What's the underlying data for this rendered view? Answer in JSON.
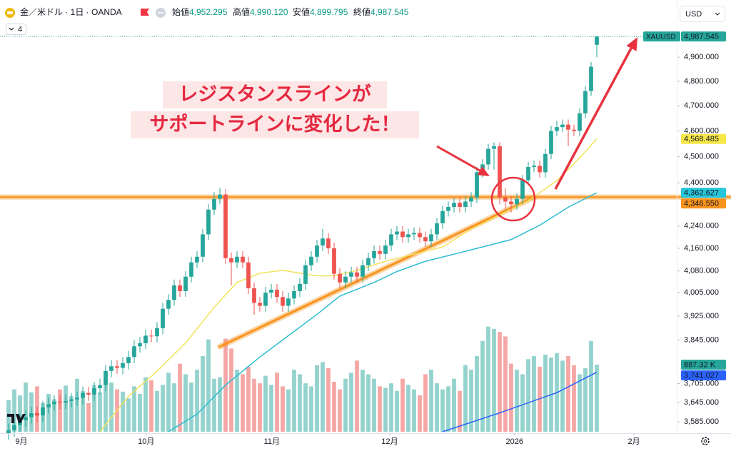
{
  "chart_data": {
    "type": "candlestick",
    "header": {
      "symbol": "金／米ドル · 1日 · OANDA",
      "open_label": "始値",
      "open": "4,952.295",
      "high_label": "高値",
      "high": "4,990.120",
      "low_label": "安値",
      "low": "4,899.795",
      "close_label": "終値",
      "close": "4,987.545"
    },
    "indicator_count": 4,
    "currency": "USD",
    "ticker": "XAUUSD",
    "log_scale": true,
    "xlim": [
      -1.5,
      117
    ],
    "xticks": [
      {
        "value": 2.25,
        "label": "9月"
      },
      {
        "value": 24.1,
        "label": "10月"
      },
      {
        "value": 46.1,
        "label": "11月"
      },
      {
        "value": 66.75,
        "label": "12月"
      },
      {
        "value": 88.6,
        "label": "2026"
      },
      {
        "value": 109.5,
        "label": "2月"
      }
    ],
    "ylim": [
      3555,
      4985
    ],
    "yticks": [
      {
        "value": 3585,
        "label": "3,585.000"
      },
      {
        "value": 3645,
        "label": "3,645.000"
      },
      {
        "value": 3705,
        "label": "3,705.000"
      },
      {
        "value": 3845,
        "label": "3,845.000"
      },
      {
        "value": 3925,
        "label": "3,925.000"
      },
      {
        "value": 4005,
        "label": "4,005.000"
      },
      {
        "value": 4080,
        "label": "4,080.000"
      },
      {
        "value": 4160,
        "label": "4,160.000"
      },
      {
        "value": 4240,
        "label": "4,240.000"
      },
      {
        "value": 4400,
        "label": "4,400.000"
      },
      {
        "value": 4500,
        "label": "4,500.000"
      },
      {
        "value": 4600,
        "label": "4,600.000"
      },
      {
        "value": 4700,
        "label": "4,700.000"
      },
      {
        "value": 4800,
        "label": "4,800.000"
      },
      {
        "value": 4900,
        "label": "4,900.000"
      }
    ],
    "ohlc": {
      "up_color": "#26a69a",
      "down_color": "#ef5350",
      "last_label": "4,987.545",
      "open": [
        3550,
        3560,
        3575,
        3590,
        3600,
        3612,
        3605,
        3630,
        3640,
        3648,
        3645,
        3650,
        3655,
        3660,
        3675,
        3670,
        3690,
        3700,
        3745,
        3760,
        3755,
        3770,
        3790,
        3825,
        3835,
        3860,
        3858,
        3885,
        3950,
        3980,
        4030,
        4010,
        4060,
        4110,
        4130,
        4210,
        4300,
        4340,
        4356,
        4125,
        4110,
        4130,
        4110,
        4020,
        3970,
        3960,
        4005,
        4015,
        3990,
        3960,
        3985,
        4010,
        4035,
        4100,
        4130,
        4170,
        4195,
        4160,
        4070,
        4040,
        4060,
        4075,
        4060,
        4100,
        4125,
        4150,
        4140,
        4170,
        4210,
        4220,
        4200,
        4210,
        4215,
        4200,
        4185,
        4210,
        4250,
        4295,
        4310,
        4325,
        4310,
        4330,
        4345,
        4440,
        4470,
        4530,
        4540,
        4345,
        4330,
        4320,
        4340,
        4410,
        4460,
        4465,
        4440,
        4510,
        4600,
        4615,
        4625,
        4605,
        4600,
        4670,
        4760,
        4952.295
      ],
      "high": [
        3580,
        3595,
        3610,
        3620,
        3632,
        3632,
        3650,
        3660,
        3668,
        3668,
        3670,
        3675,
        3680,
        3695,
        3695,
        3710,
        3720,
        3765,
        3780,
        3780,
        3790,
        3810,
        3845,
        3855,
        3880,
        3880,
        3905,
        3970,
        4000,
        4050,
        4050,
        4080,
        4130,
        4150,
        4230,
        4320,
        4365,
        4381,
        4376,
        4145,
        4150,
        4150,
        4130,
        4040,
        3990,
        4025,
        4035,
        4035,
        4010,
        4005,
        4030,
        4055,
        4120,
        4150,
        4190,
        4230,
        4215,
        4180,
        4090,
        4080,
        4095,
        4095,
        4120,
        4145,
        4170,
        4170,
        4190,
        4230,
        4240,
        4240,
        4230,
        4235,
        4235,
        4220,
        4230,
        4270,
        4315,
        4330,
        4345,
        4345,
        4350,
        4365,
        4460,
        4490,
        4550,
        4555,
        4555,
        4380,
        4350,
        4360,
        4430,
        4480,
        4485,
        4485,
        4530,
        4620,
        4640,
        4645,
        4645,
        4625,
        4690,
        4780,
        4880,
        4990.12
      ],
      "low": [
        3530,
        3540,
        3555,
        3570,
        3580,
        3585,
        3585,
        3610,
        3620,
        3625,
        3625,
        3630,
        3635,
        3640,
        3650,
        3650,
        3670,
        3680,
        3725,
        3735,
        3735,
        3750,
        3770,
        3805,
        3815,
        3838,
        3838,
        3865,
        3930,
        3960,
        3990,
        3990,
        4040,
        4090,
        4110,
        4190,
        4280,
        4320,
        4105,
        4030,
        4090,
        4090,
        4000,
        3930,
        3940,
        3940,
        3985,
        3970,
        3940,
        3940,
        3965,
        3990,
        4015,
        4080,
        4110,
        4150,
        4140,
        4050,
        4020,
        4020,
        4040,
        4040,
        4040,
        4080,
        4105,
        4120,
        4120,
        4150,
        4190,
        4180,
        4180,
        4190,
        4180,
        4165,
        4165,
        4190,
        4230,
        4275,
        4290,
        4290,
        4290,
        4310,
        4325,
        4420,
        4450,
        4450,
        4320,
        4300,
        4290,
        4300,
        4320,
        4390,
        4440,
        4420,
        4420,
        4490,
        4580,
        4595,
        4540,
        4580,
        4580,
        4650,
        4740,
        4899.795
      ],
      "close": [
        3560,
        3575,
        3590,
        3600,
        3612,
        3605,
        3630,
        3640,
        3648,
        3645,
        3650,
        3655,
        3660,
        3675,
        3670,
        3690,
        3700,
        3745,
        3760,
        3755,
        3770,
        3790,
        3825,
        3835,
        3860,
        3858,
        3885,
        3950,
        3980,
        4030,
        4010,
        4060,
        4110,
        4130,
        4210,
        4300,
        4340,
        4356,
        4125,
        4110,
        4130,
        4110,
        4020,
        3970,
        3960,
        4005,
        4015,
        3990,
        3960,
        3985,
        4010,
        4035,
        4100,
        4130,
        4170,
        4195,
        4160,
        4070,
        4040,
        4060,
        4075,
        4060,
        4100,
        4125,
        4150,
        4140,
        4170,
        4210,
        4220,
        4200,
        4210,
        4215,
        4200,
        4185,
        4210,
        4250,
        4295,
        4310,
        4325,
        4310,
        4330,
        4345,
        4440,
        4470,
        4530,
        4540,
        4345,
        4330,
        4320,
        4340,
        4410,
        4460,
        4465,
        4440,
        4510,
        4600,
        4615,
        4625,
        4605,
        4600,
        4670,
        4760,
        4860,
        4987.545
      ]
    },
    "volume": {
      "ylim": [
        0,
        1500
      ],
      "last_label": "887.32 K",
      "up_color": "#94d3cd",
      "down_color": "#f5a7a6",
      "label_color": "#26a69a",
      "values": [
        420,
        560,
        480,
        650,
        520,
        600,
        380,
        500,
        430,
        560,
        610,
        470,
        700,
        540,
        380,
        620,
        520,
        700,
        650,
        560,
        530,
        440,
        600,
        500,
        720,
        680,
        540,
        620,
        780,
        640,
        900,
        760,
        650,
        820,
        1000,
        1220,
        700,
        720,
        1230,
        1100,
        820,
        760,
        860,
        700,
        640,
        740,
        620,
        780,
        600,
        560,
        820,
        760,
        640,
        600,
        880,
        920,
        840,
        660,
        560,
        700,
        780,
        940,
        820,
        760,
        700,
        600,
        580,
        640,
        540,
        700,
        620,
        560,
        480,
        760,
        820,
        640,
        560,
        600,
        700,
        540,
        880,
        820,
        1000,
        1200,
        1390,
        1360,
        1320,
        1260,
        900,
        820,
        760,
        960,
        1000,
        860,
        1020,
        980,
        1040,
        940,
        1000,
        880,
        760,
        840,
        1200,
        887.32
      ]
    },
    "moving_averages": [
      {
        "color": "#f2e25b",
        "label_color": "#f7e84a",
        "x": [
          16,
          21,
          26,
          31,
          36,
          40,
          44,
          48,
          54,
          57,
          61,
          66,
          71,
          76,
          81,
          86,
          91,
          96,
          100,
          103
        ],
        "values": [
          3555,
          3665,
          3744,
          3836,
          3955,
          4040,
          4072,
          4082,
          4063,
          4063,
          4082,
          4114,
          4139,
          4165,
          4229,
          4281,
          4333,
          4408,
          4495,
          4568.485
        ],
        "last_label": "4,568.485"
      },
      {
        "color": "#2bbcd2",
        "label_color": "#26c6da",
        "x": [
          28,
          33,
          38,
          44,
          49,
          54,
          58,
          64,
          68,
          73,
          78,
          83,
          88,
          93,
          98,
          103
        ],
        "values": [
          3555,
          3609,
          3700,
          3790,
          3860,
          3931,
          3993,
          4040,
          4078,
          4114,
          4139,
          4165,
          4191,
          4243,
          4309,
          4362.627
        ],
        "last_label": "4,362.627"
      },
      {
        "color": "#2962ff",
        "label_color": "#2962ff",
        "x": [
          76,
          86,
          96,
          103
        ],
        "values": [
          3555,
          3613,
          3676,
          3741.027
        ],
        "last_label": "3,741.027"
      }
    ],
    "level": {
      "value": 4346.55,
      "label": "4,346.550",
      "color": "#f7931e"
    },
    "trendline": {
      "x": [
        37,
        92
      ],
      "values": [
        3824,
        4346
      ],
      "color": "#f7931e"
    },
    "annotations": [
      "レジスタンスラインが",
      "サポートラインに変化した！"
    ]
  }
}
